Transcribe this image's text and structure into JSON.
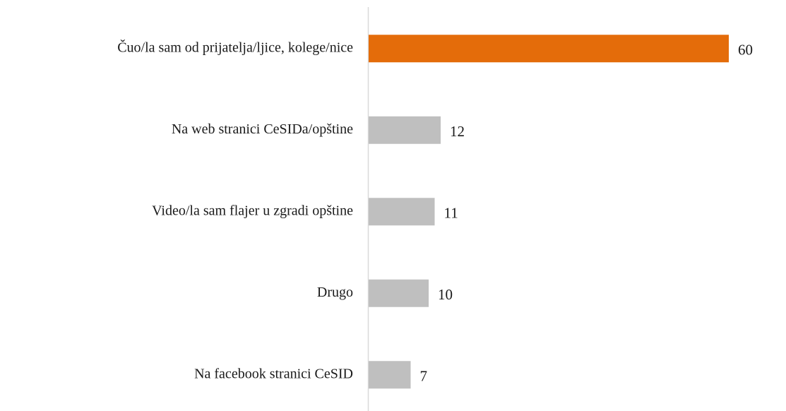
{
  "chart_data": {
    "type": "barh",
    "categories": [
      "Čuo/la sam od prijatelja/ljice, kolege/nice",
      "Na web stranici CeSIDa/opštine",
      "Video/la sam flajer u zgradi opštine",
      "Drugo",
      "Na facebook stranici CeSID"
    ],
    "values": [
      60,
      12,
      11,
      10,
      7
    ],
    "colors": [
      "#e46c0a",
      "#bfbfbf",
      "#bfbfbf",
      "#bfbfbf",
      "#bfbfbf"
    ],
    "data_labels": true
  }
}
